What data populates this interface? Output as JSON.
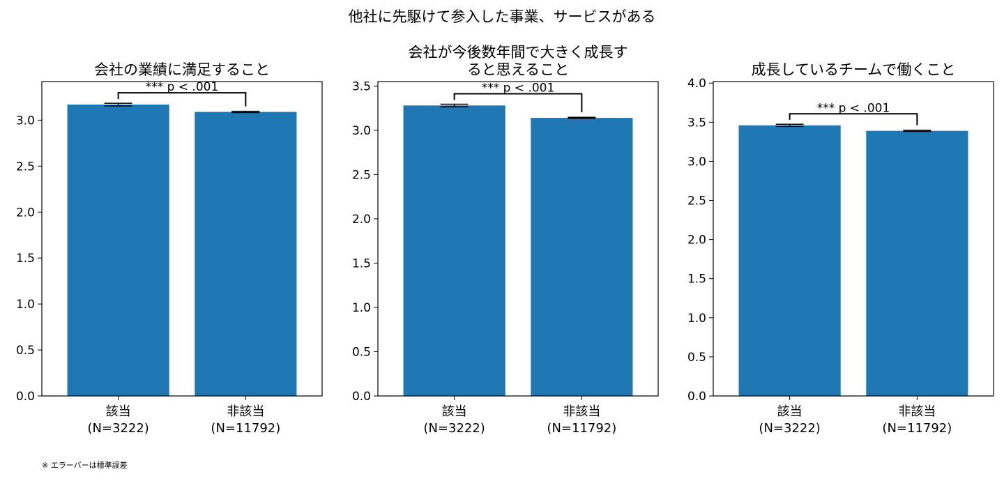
{
  "figure": {
    "suptitle": "他社に先駆けて参入した事業、サービスがある",
    "footnote": "※ エラーバーは標準誤差"
  },
  "chart_data": [
    {
      "type": "bar",
      "title": "会社の業績に満足すること",
      "categories": [
        "該当\n(N=3222)",
        "非該当\n(N=11792)"
      ],
      "values": [
        3.17,
        3.09
      ],
      "errors": [
        0.014,
        0.007
      ],
      "ylim": [
        0,
        3.42
      ],
      "yticks": [
        "0.0",
        "0.5",
        "1.0",
        "1.5",
        "2.0",
        "2.5",
        "3.0"
      ],
      "bar_color": "#1f77b4",
      "grid": false,
      "annotation": {
        "text": "*** p < .001",
        "between": [
          0,
          1
        ]
      }
    },
    {
      "type": "bar",
      "title": "会社が今後数年間で大きく成長す\nると思えること",
      "categories": [
        "該当\n(N=3222)",
        "非該当\n(N=11792)"
      ],
      "values": [
        3.28,
        3.14
      ],
      "errors": [
        0.014,
        0.007
      ],
      "ylim": [
        0,
        3.55
      ],
      "yticks": [
        "0.0",
        "0.5",
        "1.0",
        "1.5",
        "2.0",
        "2.5",
        "3.0",
        "3.5"
      ],
      "bar_color": "#1f77b4",
      "grid": false,
      "annotation": {
        "text": "*** p < .001",
        "between": [
          0,
          1
        ]
      }
    },
    {
      "type": "bar",
      "title": "成長しているチームで働くこと",
      "categories": [
        "該当\n(N=3222)",
        "非該当\n(N=11792)"
      ],
      "values": [
        3.46,
        3.39
      ],
      "errors": [
        0.014,
        0.007
      ],
      "ylim": [
        0,
        4.02
      ],
      "yticks": [
        "0.0",
        "0.5",
        "1.0",
        "1.5",
        "2.0",
        "2.5",
        "3.0",
        "3.5",
        "4.0"
      ],
      "bar_color": "#1f77b4",
      "grid": false,
      "annotation": {
        "text": "*** p < .001",
        "between": [
          0,
          1
        ]
      }
    }
  ]
}
